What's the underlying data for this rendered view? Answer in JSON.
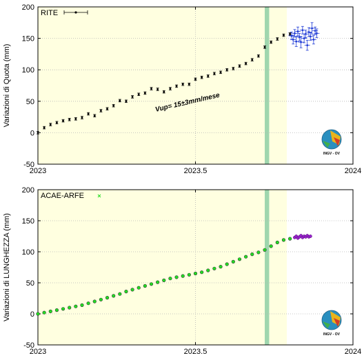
{
  "logo": {
    "text": "INGV - OV"
  },
  "chart_data": [
    {
      "type": "scatter",
      "ylabel": "Variazioni di Quota (mm)",
      "xlim": [
        2023,
        2024
      ],
      "ylim": [
        -50,
        200
      ],
      "xticks": [
        2023,
        2023.5,
        2024
      ],
      "xtick_labels": [
        "2023",
        "2023.5",
        "2024"
      ],
      "yticks": [
        -50,
        0,
        50,
        100,
        150,
        200
      ],
      "ytick_labels": [
        "-50",
        "0",
        "50",
        "100",
        "150",
        "200"
      ],
      "grid": true,
      "highlight_span": [
        2023,
        2023.79
      ],
      "marker_band": [
        2023.72,
        2023.734
      ],
      "legend_label": "RITE",
      "annotation": "Vup= 15±3mm/mese",
      "series": [
        {
          "label": "RITE",
          "color": "#000000",
          "x": [
            2023.0,
            2023.02,
            2023.04,
            2023.06,
            2023.08,
            2023.1,
            2023.12,
            2023.14,
            2023.16,
            2023.18,
            2023.2,
            2023.22,
            2023.24,
            2023.26,
            2023.28,
            2023.3,
            2023.32,
            2023.34,
            2023.36,
            2023.38,
            2023.4,
            2023.42,
            2023.44,
            2023.46,
            2023.48,
            2023.5,
            2023.52,
            2023.54,
            2023.56,
            2023.58,
            2023.6,
            2023.62,
            2023.64,
            2023.66,
            2023.68,
            2023.7,
            2023.72,
            2023.74,
            2023.76,
            2023.78,
            2023.8
          ],
          "y": [
            0,
            8,
            13,
            16,
            19,
            21,
            22,
            24,
            30,
            27,
            35,
            38,
            43,
            51,
            50,
            57,
            61,
            63,
            70,
            69,
            65,
            70,
            74,
            77,
            77,
            85,
            88,
            90,
            94,
            96,
            100,
            102,
            106,
            110,
            116,
            122,
            136,
            144,
            149,
            155,
            157
          ],
          "err": [
            2,
            2,
            2,
            2,
            2,
            2,
            2,
            2,
            2,
            2,
            2,
            2,
            2,
            2,
            2,
            2,
            2,
            2,
            2,
            2,
            2,
            2,
            2,
            2,
            2,
            2,
            2,
            2,
            2,
            2,
            2,
            2,
            2,
            2,
            2,
            2,
            2,
            2,
            2,
            2,
            2
          ]
        },
        {
          "label": "",
          "color": "#1f3bd6",
          "x": [
            2023.805,
            2023.81,
            2023.815,
            2023.82,
            2023.825,
            2023.83,
            2023.835,
            2023.84,
            2023.845,
            2023.85,
            2023.855,
            2023.86,
            2023.865,
            2023.87,
            2023.875,
            2023.88,
            2023.885
          ],
          "y": [
            154,
            148,
            158,
            145,
            161,
            152,
            144,
            163,
            150,
            157,
            139,
            160,
            153,
            166,
            148,
            162,
            158
          ],
          "err": [
            6,
            7,
            6,
            8,
            7,
            6,
            9,
            6,
            7,
            6,
            8,
            7,
            6,
            9,
            7,
            6,
            7
          ]
        }
      ]
    },
    {
      "type": "scatter",
      "ylabel": "Variazioni di LUNGHEZZA (mm)",
      "xlim": [
        2023,
        2024
      ],
      "ylim": [
        -50,
        200
      ],
      "xticks": [
        2023,
        2023.5,
        2024
      ],
      "xtick_labels": [
        "2023",
        "2023.5",
        "2024"
      ],
      "yticks": [
        -50,
        0,
        50,
        100,
        150,
        200
      ],
      "ytick_labels": [
        "-50",
        "0",
        "50",
        "100",
        "150",
        "200"
      ],
      "grid": true,
      "highlight_span": [
        2023,
        2023.79
      ],
      "marker_band": [
        2023.72,
        2023.734
      ],
      "legend_label": "ACAE-ARFE",
      "series": [
        {
          "label": "ACAE-ARFE",
          "color": "#22dd22",
          "x": [
            2023.0,
            2023.02,
            2023.04,
            2023.06,
            2023.08,
            2023.1,
            2023.12,
            2023.14,
            2023.16,
            2023.18,
            2023.2,
            2023.22,
            2023.24,
            2023.26,
            2023.28,
            2023.3,
            2023.32,
            2023.34,
            2023.36,
            2023.38,
            2023.4,
            2023.42,
            2023.44,
            2023.46,
            2023.48,
            2023.5,
            2023.52,
            2023.54,
            2023.56,
            2023.58,
            2023.6,
            2023.62,
            2023.64,
            2023.66,
            2023.68,
            2023.7,
            2023.72,
            2023.74,
            2023.76,
            2023.78,
            2023.8
          ],
          "y": [
            0,
            2,
            4,
            6,
            8,
            10,
            12,
            14,
            17,
            20,
            23,
            26,
            29,
            32,
            36,
            39,
            42,
            45,
            48,
            51,
            54,
            57,
            59,
            61,
            63,
            65,
            67,
            70,
            73,
            76,
            80,
            84,
            88,
            92,
            96,
            99,
            103,
            109,
            115,
            119,
            121
          ]
        },
        {
          "label": "",
          "color": "#9922cc",
          "x": [
            2023.815,
            2023.82,
            2023.825,
            2023.83,
            2023.835,
            2023.84,
            2023.845,
            2023.85,
            2023.855,
            2023.86,
            2023.865
          ],
          "y": [
            123,
            125,
            122,
            124,
            126,
            123,
            125,
            124,
            126,
            124,
            125
          ]
        }
      ]
    }
  ]
}
